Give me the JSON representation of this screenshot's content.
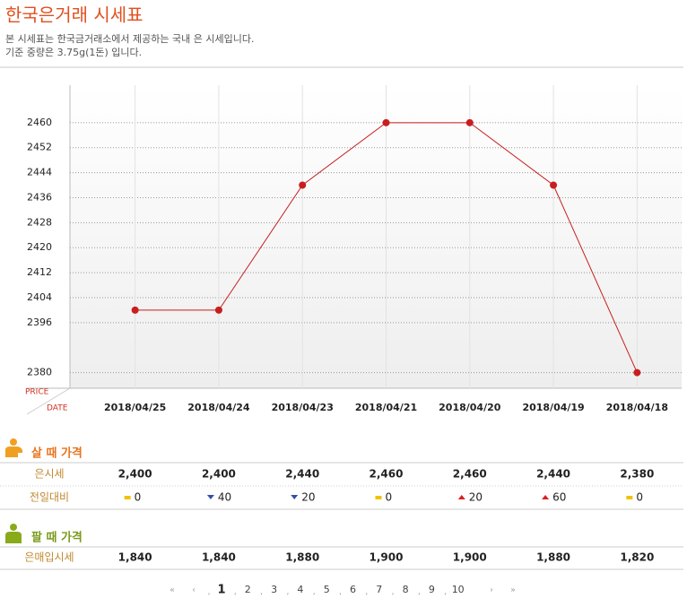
{
  "header": {
    "title": "한국은거래 시세표",
    "lines": [
      "본 시세표는 한국금거래소에서 제공하는 국내 은 시세입니다.",
      "기준 중량은 3.75g(1돈) 입니다."
    ]
  },
  "chart_data": {
    "type": "line",
    "y_axis_label": "PRICE",
    "x_axis_label": "DATE",
    "categories": [
      "2018/04/25",
      "2018/04/24",
      "2018/04/23",
      "2018/04/21",
      "2018/04/20",
      "2018/04/19",
      "2018/04/18"
    ],
    "series": [
      {
        "color": "#c81e1e",
        "values": [
          2400,
          2400,
          2440,
          2460,
          2460,
          2440,
          2380
        ]
      }
    ],
    "ylim": [
      2375,
      2472
    ],
    "yticks": [
      2380,
      2396,
      2404,
      2412,
      2420,
      2428,
      2436,
      2444,
      2452,
      2460
    ],
    "grid": true
  },
  "buy": {
    "title": "살 때 가격",
    "color": "#e8741e",
    "rows": [
      {
        "label": "은시세",
        "cells": [
          "2,400",
          "2,400",
          "2,440",
          "2,460",
          "2,460",
          "2,440",
          "2,380"
        ]
      },
      {
        "label": "전일대비",
        "cells": [
          "0",
          "40",
          "20",
          "0",
          "20",
          "60",
          "0"
        ],
        "trend": [
          "flat",
          "down",
          "down",
          "flat",
          "up",
          "up",
          "flat"
        ]
      }
    ]
  },
  "sell": {
    "title": "팔 때 가격",
    "color": "#7a9a1a",
    "rows": [
      {
        "label": "은매입시세",
        "cells": [
          "1,840",
          "1,840",
          "1,880",
          "1,900",
          "1,900",
          "1,880",
          "1,820"
        ]
      }
    ]
  },
  "pagination": {
    "first": "«",
    "prev": "‹",
    "separator": ",",
    "pages": [
      1,
      2,
      3,
      4,
      5,
      6,
      7,
      8,
      9,
      10
    ],
    "current": 1,
    "next": "›",
    "last": "»"
  }
}
